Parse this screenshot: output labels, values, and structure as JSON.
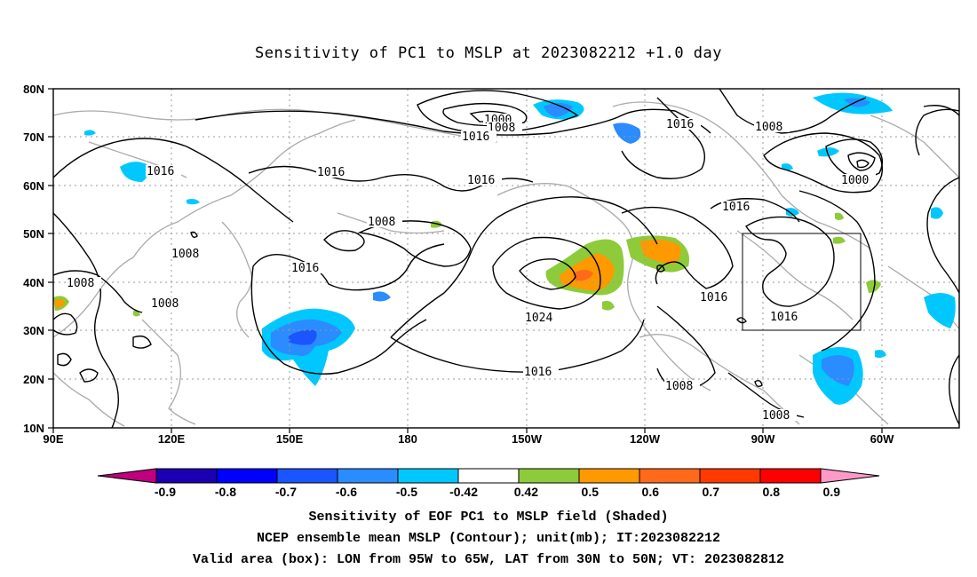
{
  "title": "Sensitivity of PC1 to MSLP at 2023082212 +1.0 day",
  "map": {
    "lat_labels": [
      "80N",
      "70N",
      "60N",
      "50N",
      "40N",
      "30N",
      "20N",
      "10N"
    ],
    "lon_labels": [
      "90E",
      "120E",
      "150E",
      "180",
      "150W",
      "120W",
      "90W",
      "60W"
    ],
    "contour_labels": [
      {
        "text": "1000"
      },
      {
        "text": "1008"
      },
      {
        "text": "1016"
      },
      {
        "text": "1016"
      },
      {
        "text": "1008"
      },
      {
        "text": "1016"
      },
      {
        "text": "1000"
      },
      {
        "text": "1016"
      },
      {
        "text": "1016"
      },
      {
        "text": "1016"
      },
      {
        "text": "1008"
      },
      {
        "text": "1008"
      },
      {
        "text": "1016"
      },
      {
        "text": "1024"
      },
      {
        "text": "1016"
      },
      {
        "text": "1008"
      },
      {
        "text": "1016"
      },
      {
        "text": "1008"
      },
      {
        "text": "1008"
      },
      {
        "text": "1016"
      },
      {
        "text": "1008"
      }
    ],
    "valid_box": {
      "lon_west": "95W",
      "lon_east": "65W",
      "lat_south": "30N",
      "lat_north": "50N"
    }
  },
  "colorbar": {
    "labels": [
      "-0.9",
      "-0.8",
      "-0.7",
      "-0.6",
      "-0.5",
      "-0.42",
      "0.42",
      "0.5",
      "0.6",
      "0.7",
      "0.8",
      "0.9"
    ],
    "colors": [
      "#c0007f",
      "#1a00b0",
      "#0000ff",
      "#1a55ff",
      "#2a8cff",
      "#00c8ff",
      "#ffffff",
      "#8ecb3a",
      "#ff9900",
      "#ff6a1a",
      "#ff3a00",
      "#ff0000",
      "#ff99c8"
    ]
  },
  "footer": {
    "line1": "Sensitivity of EOF PC1 to MSLP field (Shaded)",
    "line2": "NCEP ensemble mean MSLP (Contour); unit(mb); IT:2023082212",
    "line3": "Valid area (box): LON from 95W to 65W, LAT from 30N to 50N; VT: 2023082812"
  }
}
